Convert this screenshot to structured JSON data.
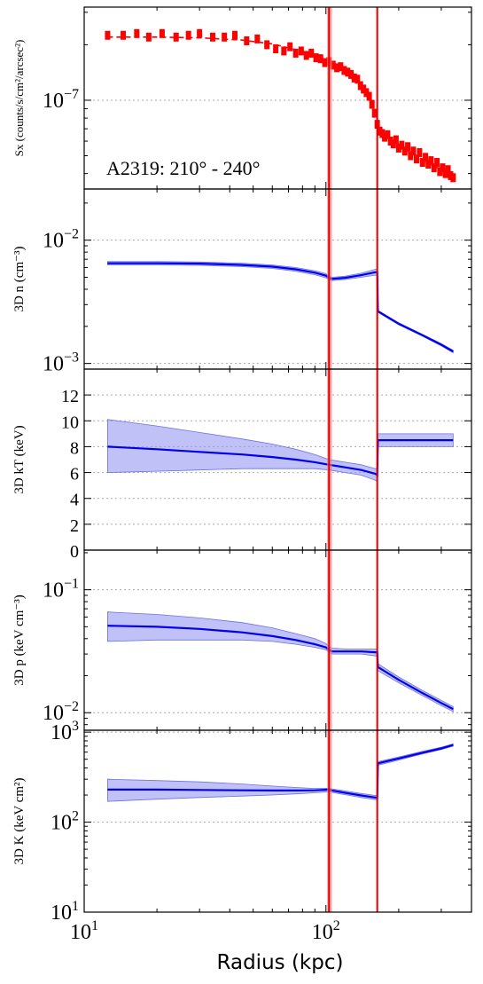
{
  "chart_data": {
    "type": "line",
    "xscale": "log",
    "xlim": [
      10,
      400
    ],
    "xlabel": "Radius (kpc)",
    "x_ticks": [
      {
        "value": 10,
        "base": "10",
        "exp": "1"
      },
      {
        "value": 100,
        "base": "10",
        "exp": "2"
      }
    ],
    "vertical_lines": [
      {
        "x": 103,
        "band": [
          101,
          106
        ],
        "color": "#e00000"
      },
      {
        "x": 163,
        "color": "#e00000"
      }
    ],
    "panels": [
      {
        "id": "sx",
        "ylabel": "Sx (counts/s/cm²/arcsec²)",
        "yscale": "log",
        "ylim": [
          3.3e-08,
          3.2e-07
        ],
        "yticks": [
          {
            "value": 1e-07,
            "base": "10",
            "exp": "−7"
          }
        ],
        "annotation": "A2319: 210° - 240°",
        "series": [
          {
            "kind": "data",
            "color": "#ff0000",
            "x": [
              12.5,
              14.5,
              16.5,
              18.5,
              21,
              24,
              27,
              30,
              34,
              38,
              42,
              47,
              52,
              57,
              62,
              67,
              71,
              75,
              79,
              83,
              87,
              91,
              95,
              99,
              103,
              107,
              111,
              115,
              119,
              123,
              127,
              131,
              135,
              139,
              143,
              147,
              151,
              155,
              159,
              163,
              167,
              171,
              175,
              180,
              185,
              190,
              195,
              200,
              206,
              212,
              218,
              224,
              230,
              237,
              244,
              251,
              258,
              265,
              272,
              280,
              288,
              296,
              304,
              312,
              320,
              328,
              336
            ],
            "y": [
              2.25e-07,
              2.25e-07,
              2.3e-07,
              2.2e-07,
              2.3e-07,
              2.2e-07,
              2.25e-07,
              2.3e-07,
              2.2e-07,
              2.2e-07,
              2.25e-07,
              2.1e-07,
              2.15e-07,
              2e-07,
              1.9e-07,
              1.85e-07,
              1.95e-07,
              1.8e-07,
              1.85e-07,
              1.75e-07,
              1.8e-07,
              1.7e-07,
              1.68e-07,
              1.6e-07,
              1.62e-07,
              1.55e-07,
              1.5e-07,
              1.52e-07,
              1.45e-07,
              1.42e-07,
              1.38e-07,
              1.32e-07,
              1.3e-07,
              1.2e-07,
              1.15e-07,
              1.1e-07,
              1.05e-07,
              9.5e-08,
              8.5e-08,
              7.4e-08,
              6.8e-08,
              6.6e-08,
              6.3e-08,
              6.5e-08,
              6e-08,
              5.8e-08,
              6.1e-08,
              5.5e-08,
              5.7e-08,
              5.3e-08,
              5.6e-08,
              5e-08,
              5.3e-08,
              4.8e-08,
              5.2e-08,
              4.6e-08,
              4.9e-08,
              4.5e-08,
              4.7e-08,
              4.3e-08,
              4.6e-08,
              4.1e-08,
              4.3e-08,
              4e-08,
              4.2e-08,
              3.9e-08,
              3.8e-08
            ]
          },
          {
            "kind": "model",
            "color": "#ff0000",
            "dashed": true,
            "x": [
              12.5,
              20,
              30,
              45,
              60,
              75,
              90,
              100,
              103,
              120,
              140,
              155,
              162,
              165,
              180,
              200,
              230,
              260,
              300,
              336
            ],
            "y": [
              2.2e-07,
              2.2e-07,
              2.18e-07,
              2.12e-07,
              2.02e-07,
              1.88e-07,
              1.75e-07,
              1.66e-07,
              1.6e-07,
              1.45e-07,
              1.2e-07,
              9.8e-08,
              8.2e-08,
              7e-08,
              6.3e-08,
              5.7e-08,
              5.1e-08,
              4.6e-08,
              4.2e-08,
              3.8e-08
            ]
          }
        ]
      },
      {
        "id": "n",
        "ylabel": "3D n (cm⁻³)",
        "yscale": "log",
        "ylim": [
          0.0009,
          0.026
        ],
        "yticks": [
          {
            "value": 0.01,
            "base": "10",
            "exp": "−2"
          },
          {
            "value": 0.001,
            "base": "10",
            "exp": "−3"
          }
        ],
        "series": [
          {
            "kind": "model",
            "color": "#0000ee",
            "x": [
              12.5,
              20,
              30,
              45,
              60,
              75,
              90,
              100,
              103,
              106,
              120,
              140,
              160,
              163,
              164,
              200,
              250,
              300,
              336
            ],
            "y": [
              0.0065,
              0.0065,
              0.00645,
              0.0063,
              0.0061,
              0.0058,
              0.00545,
              0.00515,
              0.00495,
              0.00485,
              0.00495,
              0.0052,
              0.0055,
              0.0055,
              0.00265,
              0.0021,
              0.0017,
              0.00142,
              0.00125
            ],
            "lower": [
              0.0063,
              0.0063,
              0.00625,
              0.0061,
              0.0059,
              0.0056,
              0.00525,
              0.00495,
              0.0048,
              0.0047,
              0.0048,
              0.005,
              0.0052,
              0.0052,
              0.0026,
              0.00206,
              0.00167,
              0.00139,
              0.00122
            ],
            "upper": [
              0.0067,
              0.0067,
              0.00665,
              0.0065,
              0.0063,
              0.006,
              0.00565,
              0.00535,
              0.0051,
              0.005,
              0.0051,
              0.0054,
              0.0058,
              0.0058,
              0.0027,
              0.00214,
              0.00173,
              0.00145,
              0.00128
            ]
          }
        ]
      },
      {
        "id": "kt",
        "ylabel": "3D kT (keV)",
        "yscale": "linear",
        "ylim": [
          0,
          14
        ],
        "yticks": [
          {
            "value": 0,
            "label": "0"
          },
          {
            "value": 2,
            "label": "2"
          },
          {
            "value": 4,
            "label": "4"
          },
          {
            "value": 6,
            "label": "6"
          },
          {
            "value": 8,
            "label": "8"
          },
          {
            "value": 10,
            "label": "10"
          },
          {
            "value": 12,
            "label": "12"
          }
        ],
        "series": [
          {
            "kind": "model",
            "color": "#0000ee",
            "x": [
              12.5,
              20,
              30,
              45,
              60,
              75,
              90,
              103,
              120,
              140,
              160,
              163,
              164,
              200,
              250,
              300,
              336
            ],
            "y": [
              8.0,
              7.8,
              7.6,
              7.4,
              7.2,
              7.0,
              6.8,
              6.6,
              6.4,
              6.2,
              5.9,
              5.8,
              8.5,
              8.5,
              8.5,
              8.5,
              8.5
            ],
            "lower": [
              6.0,
              6.1,
              6.2,
              6.3,
              6.3,
              6.3,
              6.3,
              6.2,
              6.0,
              5.8,
              5.4,
              5.3,
              8.0,
              8.0,
              8.0,
              8.0,
              8.0
            ],
            "upper": [
              10.1,
              9.6,
              9.1,
              8.6,
              8.2,
              7.8,
              7.4,
              7.0,
              6.8,
              6.6,
              6.3,
              6.3,
              9.0,
              9.0,
              9.0,
              9.0,
              9.0
            ]
          }
        ]
      },
      {
        "id": "p",
        "ylabel": "3D p (keV cm⁻³)",
        "yscale": "log",
        "ylim": [
          0.0072,
          0.21
        ],
        "yticks": [
          {
            "value": 0.1,
            "base": "10",
            "exp": "−1"
          },
          {
            "value": 0.01,
            "base": "10",
            "exp": "−2"
          }
        ],
        "series": [
          {
            "kind": "model",
            "color": "#0000ee",
            "x": [
              12.5,
              20,
              30,
              45,
              60,
              75,
              90,
              100,
              103,
              106,
              120,
              140,
              160,
              163,
              164,
              200,
              250,
              300,
              336
            ],
            "y": [
              0.051,
              0.05,
              0.048,
              0.045,
              0.042,
              0.039,
              0.036,
              0.034,
              0.0325,
              0.0315,
              0.0315,
              0.0315,
              0.031,
              0.031,
              0.0235,
              0.0185,
              0.0145,
              0.012,
              0.0107
            ],
            "lower": [
              0.038,
              0.039,
              0.039,
              0.039,
              0.038,
              0.036,
              0.034,
              0.0325,
              0.031,
              0.03,
              0.03,
              0.03,
              0.029,
              0.029,
              0.022,
              0.0175,
              0.0138,
              0.0114,
              0.0102
            ],
            "upper": [
              0.066,
              0.063,
              0.059,
              0.054,
              0.049,
              0.044,
              0.04,
              0.0365,
              0.0345,
              0.0335,
              0.033,
              0.033,
              0.033,
              0.033,
              0.025,
              0.0195,
              0.0152,
              0.0126,
              0.0112
            ]
          }
        ]
      },
      {
        "id": "k",
        "ylabel": "3D K (keV cm²)",
        "yscale": "log",
        "ylim": [
          10,
          1050
        ],
        "yticks": [
          {
            "value": 1000,
            "base": "10",
            "exp": "3"
          },
          {
            "value": 100,
            "base": "10",
            "exp": "2"
          },
          {
            "value": 10,
            "base": "10",
            "exp": "1"
          }
        ],
        "series": [
          {
            "kind": "model",
            "color": "#0000ee",
            "x": [
              12.5,
              20,
              30,
              45,
              60,
              75,
              90,
              103,
              106,
              120,
              140,
              160,
              163,
              164,
              200,
              250,
              300,
              336
            ],
            "y": [
              230,
              230,
              228,
              226,
              225,
              225,
              226,
              230,
              225,
              212,
              198,
              188,
              186,
              450,
              510,
              590,
              660,
              720
            ],
            "lower": [
              170,
              180,
              188,
              195,
              200,
              206,
              212,
              218,
              214,
              202,
              188,
              178,
              176,
              430,
              490,
              570,
              640,
              700
            ],
            "upper": [
              300,
              290,
              280,
              265,
              252,
              243,
              237,
              238,
              234,
              222,
              208,
              198,
              196,
              470,
              530,
              610,
              680,
              740
            ]
          }
        ]
      }
    ]
  }
}
